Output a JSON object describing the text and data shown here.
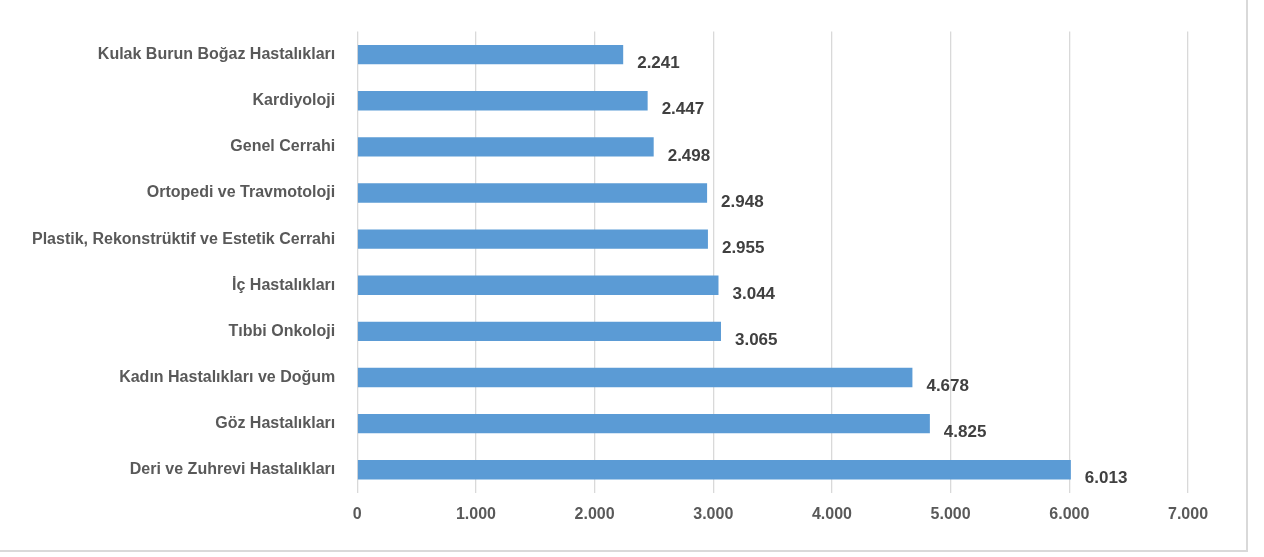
{
  "chart_data": {
    "type": "bar",
    "orientation": "horizontal",
    "categories": [
      "Kulak Burun Boğaz Hastalıkları",
      "Kardiyoloji",
      "Genel Cerrahi",
      "Ortopedi ve Travmotoloji",
      "Plastik, Rekonstrüktif ve Estetik Cerrahi",
      "İç Hastalıkları",
      "Tıbbi Onkoloji",
      "Kadın Hastalıkları ve Doğum",
      "Göz Hastalıkları",
      "Deri ve Zuhrevi Hastalıkları"
    ],
    "values": [
      2241,
      2447,
      2498,
      2948,
      2955,
      3044,
      3065,
      4678,
      4825,
      6013
    ],
    "value_labels": [
      "2.241",
      "2.447",
      "2.498",
      "2.948",
      "2.955",
      "3.044",
      "3.065",
      "4.678",
      "4.825",
      "6.013"
    ],
    "color": "#5b9bd5",
    "xlim": [
      0,
      7000
    ],
    "xticks": [
      {
        "value": 0,
        "label": "0"
      },
      {
        "value": 1000,
        "label": "1.000"
      },
      {
        "value": 2000,
        "label": "2.000"
      },
      {
        "value": 3000,
        "label": "3.000"
      },
      {
        "value": 4000,
        "label": "4.000"
      },
      {
        "value": 5000,
        "label": "5.000"
      },
      {
        "value": 6000,
        "label": "6.000"
      },
      {
        "value": 7000,
        "label": "7.000"
      }
    ],
    "grid": "x",
    "legend": false
  }
}
